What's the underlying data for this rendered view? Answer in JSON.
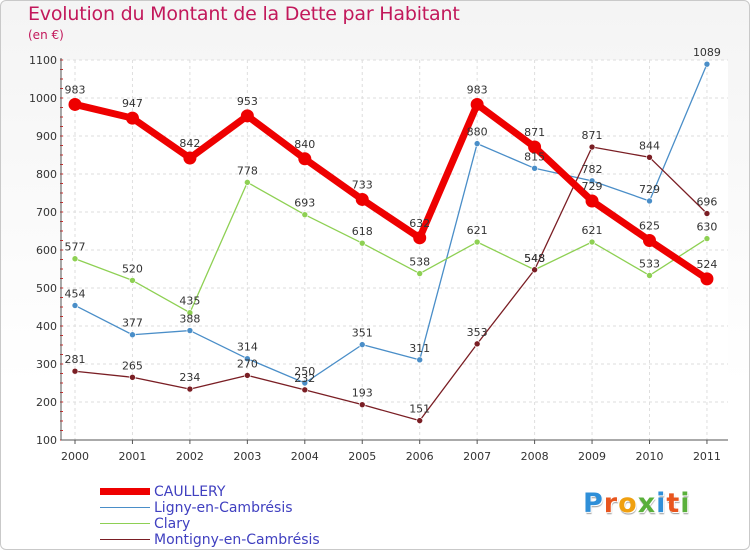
{
  "header": {
    "title": "Evolution du Montant de la Dette par Habitant",
    "unit": "(en €)"
  },
  "logo": {
    "text": "Proxiti",
    "letter_colors": [
      "#2f8fd8",
      "#e8551e",
      "#f0a010",
      "#5ab03b",
      "#2f8fd8",
      "#e8551e",
      "#5ab03b"
    ]
  },
  "chart_data": {
    "type": "line",
    "title": "Evolution du Montant de la Dette par Habitant",
    "subtitle": "(en €)",
    "x": [
      "2000",
      "2001",
      "2002",
      "2003",
      "2004",
      "2005",
      "2006",
      "2007",
      "2008",
      "2009",
      "2010",
      "2011"
    ],
    "ylim": [
      100,
      1100
    ],
    "yticks": [
      100,
      200,
      300,
      400,
      500,
      600,
      700,
      800,
      900,
      1000,
      1100
    ],
    "grid": true,
    "legend_position": "bottom-left",
    "series": [
      {
        "name": "CAULLERY",
        "color": "#ee0000",
        "values": [
          983,
          947,
          842,
          953,
          840,
          733,
          632,
          983,
          871,
          729,
          625,
          524
        ],
        "labels": [
          "983",
          "947",
          "842",
          "953",
          "840",
          "733",
          "632",
          "983",
          "871",
          "729",
          "625",
          "524"
        ]
      },
      {
        "name": "Ligny-en-Cambrésis",
        "color": "#4a8ec8",
        "values": [
          454,
          377,
          388,
          314,
          250,
          351,
          311,
          880,
          815,
          782,
          729,
          1089
        ],
        "labels": [
          "454",
          "377",
          "388",
          "314",
          "250",
          "351",
          "311",
          "880",
          "815",
          "782",
          "729",
          "1089"
        ]
      },
      {
        "name": "Clary",
        "color": "#8ed053",
        "values": [
          577,
          520,
          435,
          778,
          693,
          618,
          538,
          621,
          548,
          621,
          533,
          630
        ],
        "labels": [
          "577",
          "520",
          "435",
          "778",
          "693",
          "618",
          "538",
          "621",
          "548",
          "621",
          "533",
          "630"
        ]
      },
      {
        "name": "Montigny-en-Cambrésis",
        "color": "#7a1e24",
        "values": [
          281,
          265,
          234,
          270,
          232,
          193,
          151,
          353,
          548,
          871,
          844,
          696
        ],
        "labels": [
          "281",
          "265",
          "234",
          "270",
          "232",
          "193",
          "151",
          "353",
          "548",
          "871",
          "844",
          "696"
        ]
      }
    ]
  }
}
